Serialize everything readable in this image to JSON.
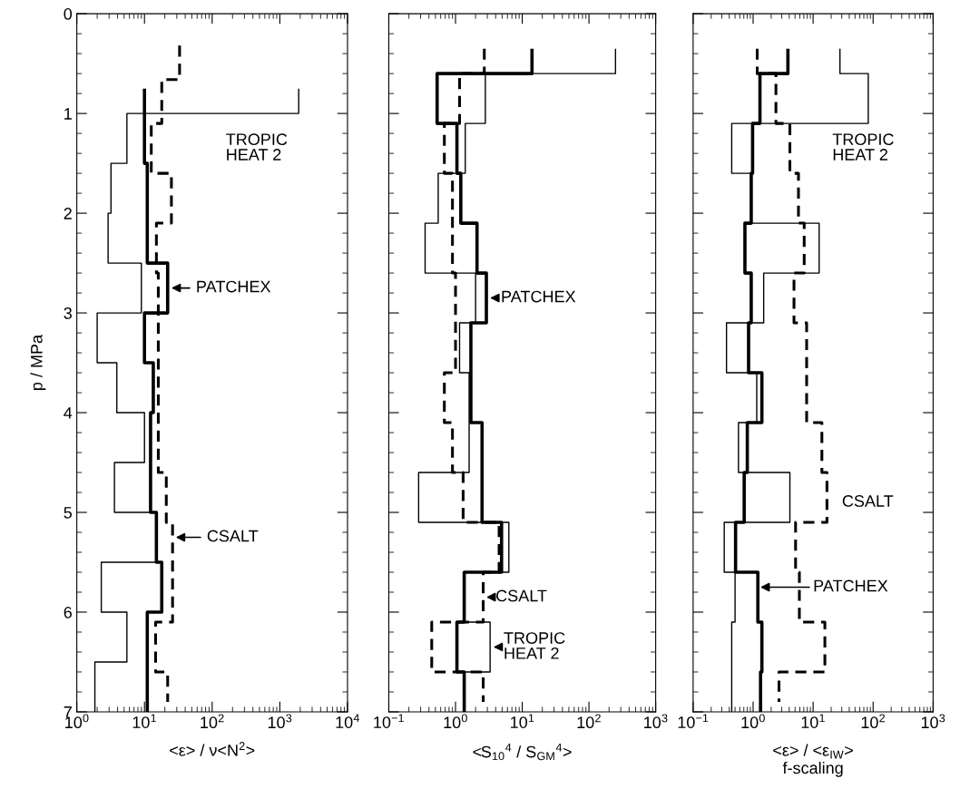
{
  "chart_data": [
    {
      "type": "step",
      "orientation": "horizontal",
      "xlabel": "<ε> / ν<N$^{2}$>",
      "ylabel": "p / MPa",
      "log": "x",
      "xlim": [
        1,
        10000
      ],
      "xticks": [
        {
          "value": 1,
          "label": "10$^{0}$"
        },
        {
          "value": 10,
          "label": "10$^{1}$"
        },
        {
          "value": 100,
          "label": "10$^{2}$"
        },
        {
          "value": 1000,
          "label": "10$^{3}$"
        },
        {
          "value": 10000,
          "label": "10$^{4}$"
        }
      ],
      "ylim": [
        7,
        0
      ],
      "yticks": [
        0,
        1,
        2,
        3,
        4,
        5,
        6,
        7
      ],
      "annotations": [
        "TROPIC\nHEAT 2",
        {
          "text": "PATCHEX",
          "x": 25,
          "y": 2.75
        },
        {
          "text": "CSALT",
          "x": 29,
          "y": 5.25
        }
      ],
      "series": [
        {
          "color": "#000000",
          "line_style": "solid",
          "x": [
            0.75,
            1.0,
            1.5,
            2.0,
            2.5,
            3.0,
            3.5,
            4.0,
            4.5,
            5.0,
            5.5,
            6.0,
            6.5,
            7.0
          ],
          "values": [
            1900,
            5.5,
            3.2,
            2.9,
            9,
            2,
            3.9,
            10,
            3.6,
            15,
            2.3,
            5.5,
            1.85,
            1.85
          ]
        },
        {
          "color": "#000000",
          "line_style": "solid",
          "x": [
            0.75,
            1.5,
            2.5,
            3.0,
            3.5,
            4.0,
            5.0,
            5.5,
            6.0,
            7.0
          ],
          "values": [
            10,
            11,
            22,
            10,
            13.5,
            12.3,
            15,
            18,
            11,
            11
          ]
        },
        {
          "color": "#000000",
          "line_style": "dashed",
          "x": [
            0.32,
            0.66,
            1.1,
            1.6,
            2.1,
            2.6,
            4.6,
            5.1,
            6.1,
            6.6,
            6.9
          ],
          "values": [
            33,
            18,
            12.6,
            25,
            15,
            16,
            21,
            26,
            14.6,
            22,
            22
          ]
        }
      ]
    },
    {
      "type": "step",
      "orientation": "horizontal",
      "xlabel": "<S$_{10}$$^{4}$ / S$_{GM}$$^{4}$>",
      "log": "x",
      "xlim": [
        0.1,
        1000
      ],
      "xticks": [
        {
          "value": 0.1,
          "label": "10$^{−1}$"
        },
        {
          "value": 1,
          "label": "10$^{0}$"
        },
        {
          "value": 10,
          "label": "10$^{1}$"
        },
        {
          "value": 100,
          "label": "10$^{2}$"
        },
        {
          "value": 1000,
          "label": "10$^{3}$"
        }
      ],
      "ylim": [
        7,
        0
      ],
      "yticks": [
        0,
        1,
        2,
        3,
        4,
        5,
        6,
        7
      ],
      "tick_labels": "x",
      "annotations": [
        {
          "text": "PATCHEX",
          "x": 3.3,
          "y": 2.85
        },
        {
          "text": "CSALT",
          "x": 2.9,
          "y": 5.85
        },
        {
          "text": "TROPIC\nHEAT 2",
          "x": 3.7,
          "y": 6.35
        }
      ],
      "series": [
        {
          "color": "#000000",
          "line_style": "solid",
          "x": [
            0.35,
            0.6,
            1.1,
            1.6,
            2.1,
            2.6,
            3.1,
            3.6,
            4.6,
            5.1,
            5.6,
            6.1,
            6.6,
            7.0
          ],
          "values": [
            250,
            2.8,
            1.4,
            0.55,
            0.35,
            2.0,
            1.15,
            1.6,
            0.28,
            6.3,
            1.35,
            3.3,
            1.35,
            1.35
          ]
        },
        {
          "color": "#000000",
          "line_style": "solid",
          "x": [
            0.35,
            0.6,
            1.1,
            1.6,
            2.1,
            2.6,
            3.1,
            4.1,
            5.1,
            5.6,
            6.1,
            6.6,
            7.0
          ],
          "values": [
            14,
            0.53,
            1.05,
            1.2,
            2.1,
            2.9,
            1.7,
            2.5,
            4.9,
            1.35,
            1.05,
            1.35,
            1.35
          ]
        },
        {
          "color": "#000000",
          "line_style": "dashed",
          "x": [
            0.35,
            0.6,
            1.1,
            1.6,
            2.6,
            3.6,
            4.1,
            4.6,
            5.1,
            5.6,
            6.1,
            6.6,
            6.9
          ],
          "values": [
            2.7,
            1.15,
            0.68,
            0.9,
            1.0,
            0.68,
            0.9,
            1.3,
            4.5,
            2.6,
            0.44,
            2.6,
            2.6
          ]
        }
      ]
    },
    {
      "type": "step",
      "orientation": "horizontal",
      "xlabel": "<ε> / <ε$_{IW}$>\nf-scaling",
      "log": "x",
      "xlim": [
        0.1,
        1000
      ],
      "xticks": [
        {
          "value": 0.1,
          "label": "10$^{−1}$"
        },
        {
          "value": 1,
          "label": "10$^{0}$"
        },
        {
          "value": 10,
          "label": "10$^{1}$"
        },
        {
          "value": 100,
          "label": "10$^{2}$"
        },
        {
          "value": 1000,
          "label": "10$^{3}$"
        }
      ],
      "ylim": [
        7,
        0
      ],
      "yticks": [
        0,
        1,
        2,
        3,
        4,
        5,
        6,
        7
      ],
      "tick_labels": "x",
      "annotations": [
        "TROPIC\nHEAT 2",
        "CSALT",
        "PATCHEX"
      ],
      "series": [
        {
          "color": "#000000",
          "line_style": "solid",
          "x": [
            0.35,
            0.6,
            1.1,
            1.6,
            2.1,
            2.6,
            3.1,
            3.6,
            4.1,
            4.6,
            5.1,
            5.6,
            6.1,
            7.0
          ],
          "values": [
            28,
            83,
            0.44,
            0.93,
            12.6,
            1.5,
            0.36,
            1.15,
            0.57,
            4.1,
            0.33,
            0.5,
            0.44,
            0.44
          ]
        },
        {
          "color": "#000000",
          "line_style": "solid",
          "x": [
            0.35,
            0.6,
            1.1,
            1.6,
            2.1,
            2.6,
            3.1,
            3.6,
            4.1,
            4.6,
            5.1,
            5.6,
            6.1,
            6.6,
            7.0
          ],
          "values": [
            3.8,
            1.3,
            0.98,
            0.93,
            0.73,
            0.93,
            0.84,
            1.4,
            0.8,
            0.71,
            0.51,
            1.2,
            1.4,
            1.33,
            1.33
          ]
        },
        {
          "color": "#000000",
          "line_style": "dashed",
          "x": [
            0.35,
            0.6,
            1.1,
            1.6,
            2.1,
            2.6,
            3.1,
            4.1,
            4.6,
            5.1,
            5.6,
            6.1,
            6.6,
            6.9
          ],
          "values": [
            1.17,
            2.4,
            4.1,
            5.7,
            7.1,
            4.8,
            7.8,
            14,
            17,
            5.1,
            5.9,
            15.7,
            2.7,
            2.7
          ]
        }
      ]
    }
  ]
}
